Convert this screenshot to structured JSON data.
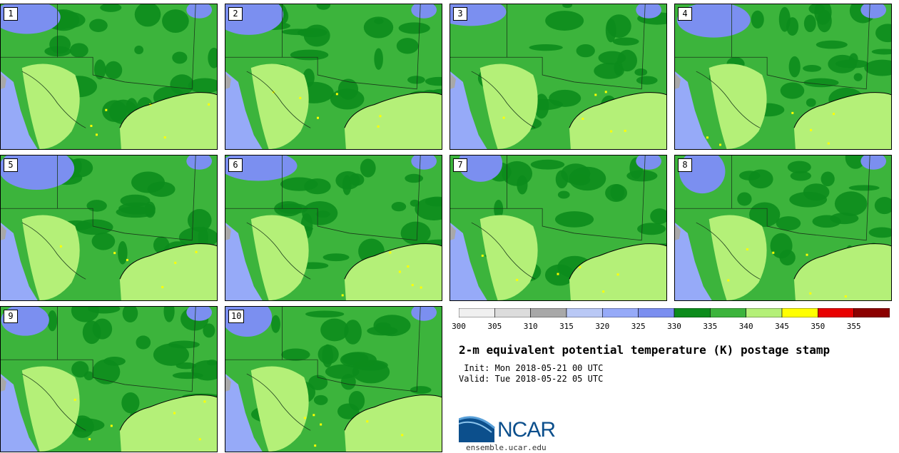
{
  "panels": [
    {
      "label": "1"
    },
    {
      "label": "2"
    },
    {
      "label": "3"
    },
    {
      "label": "4"
    },
    {
      "label": "5"
    },
    {
      "label": "6"
    },
    {
      "label": "7"
    },
    {
      "label": "8"
    },
    {
      "label": "9"
    },
    {
      "label": "10"
    }
  ],
  "colorbar": {
    "ticks": [
      "300",
      "305",
      "310",
      "315",
      "320",
      "325",
      "330",
      "335",
      "340",
      "345",
      "350",
      "355"
    ],
    "colors": [
      "#f0f0f0",
      "#dcdcdc",
      "#a8a8a8",
      "#b9c8f5",
      "#96aaf8",
      "#7b8ff0",
      "#0c8c1c",
      "#3cb43c",
      "#b4f078",
      "#ffff00",
      "#e80000",
      "#8b0000"
    ]
  },
  "title": "2-m equivalent potential temperature (K) postage stamp",
  "init": " Init: Mon 2018-05-21 00 UTC",
  "valid": "Valid: Tue 2018-05-22 05 UTC",
  "logo_text": "NCAR",
  "website": "ensemble.ucar.edu"
}
